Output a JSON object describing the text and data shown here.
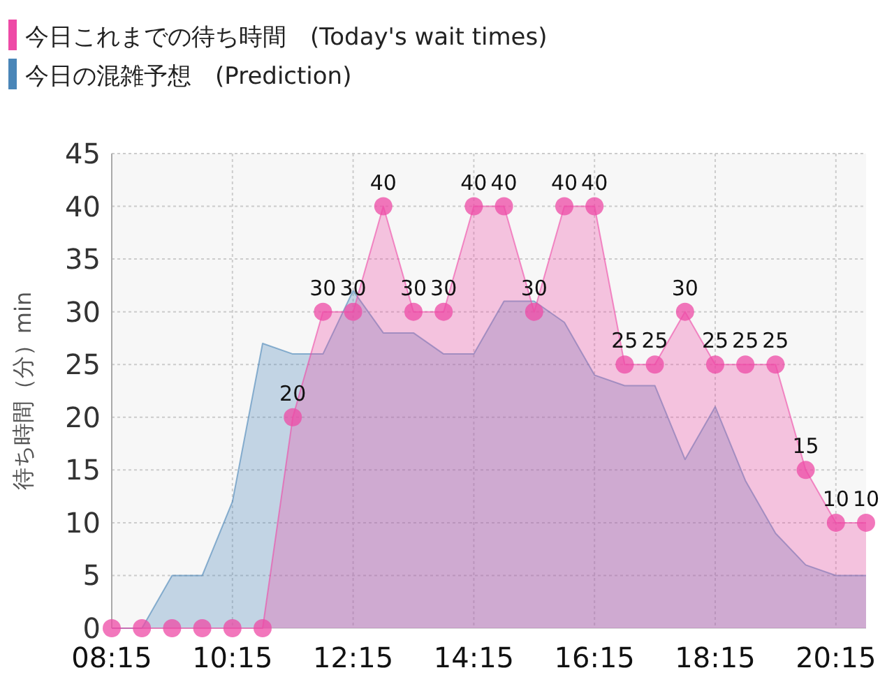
{
  "chart_data": {
    "type": "area",
    "ylabel": "待ち時間（分）min",
    "x": [
      8.25,
      8.75,
      9.25,
      9.75,
      10.25,
      10.75,
      11.25,
      11.75,
      12.25,
      12.75,
      13.25,
      13.75,
      14.25,
      14.75,
      15.25,
      15.75,
      16.25,
      16.75,
      17.25,
      17.75,
      18.25,
      18.75,
      19.25,
      19.75,
      20.25,
      20.75
    ],
    "series": [
      {
        "name": "今日これまでの待ち時間　(Today's wait times)",
        "color": "#ee4aa6",
        "marker": "circle",
        "values": [
          0,
          0,
          0,
          0,
          0,
          0,
          20,
          30,
          30,
          40,
          30,
          30,
          40,
          40,
          30,
          40,
          40,
          25,
          25,
          30,
          25,
          25,
          25,
          15,
          10,
          10
        ],
        "value_labels": [
          null,
          null,
          null,
          null,
          null,
          null,
          "20",
          "30",
          "30",
          "40",
          "30",
          "30",
          "40",
          "40",
          "30",
          "40",
          "40",
          "25",
          "25",
          "30",
          "25",
          "25",
          "25",
          "15",
          "10",
          "10"
        ]
      },
      {
        "name": "今日の混雑予想　(Prediction)",
        "color": "#4a86b8",
        "values": [
          0,
          0,
          5,
          5,
          12,
          27,
          26,
          26,
          32,
          28,
          28,
          26,
          26,
          31,
          31,
          29,
          24,
          23,
          23,
          16,
          21,
          14,
          9,
          6,
          5,
          5
        ]
      }
    ],
    "xlim": [
      8.25,
      20.75
    ],
    "xticks": [
      {
        "value": 8.25,
        "label": "08:15"
      },
      {
        "value": 10.25,
        "label": "10:15"
      },
      {
        "value": 12.25,
        "label": "12:15"
      },
      {
        "value": 14.25,
        "label": "14:15"
      },
      {
        "value": 16.25,
        "label": "16:15"
      },
      {
        "value": 18.25,
        "label": "18:15"
      },
      {
        "value": 20.25,
        "label": "20:15"
      }
    ],
    "ylim": [
      0,
      45
    ],
    "yticks": [
      0,
      5,
      10,
      15,
      20,
      25,
      30,
      35,
      40,
      45
    ],
    "grid": true,
    "legend": "top left"
  }
}
